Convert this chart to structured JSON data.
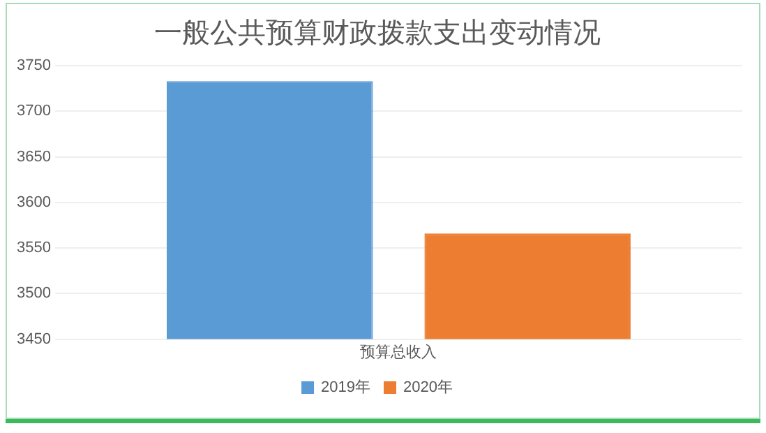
{
  "chart_data": {
    "type": "bar",
    "title": "一般公共预算财政拨款支出变动情况",
    "categories": [
      "预算总收入"
    ],
    "series": [
      {
        "name": "2019年",
        "color": "#5b9bd5",
        "values": [
          3733
        ]
      },
      {
        "name": "2020年",
        "color": "#ed7d31",
        "values": [
          3566
        ]
      }
    ],
    "ylim": [
      3450,
      3750
    ],
    "yticks": [
      3450,
      3500,
      3550,
      3600,
      3650,
      3700,
      3750
    ],
    "grid": "y",
    "legend": "bottom"
  }
}
